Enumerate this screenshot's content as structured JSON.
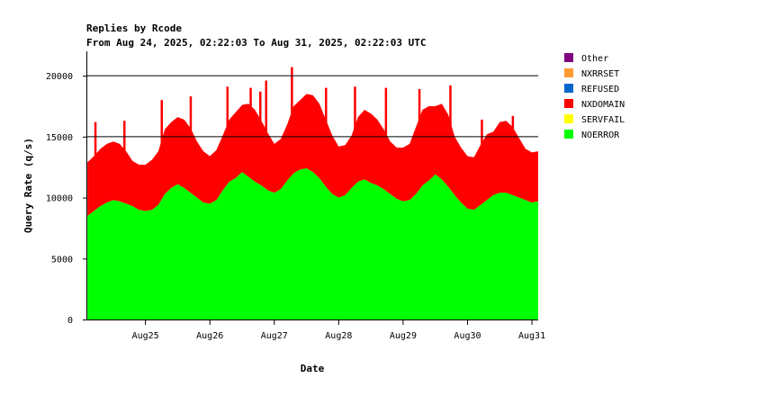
{
  "chart_data": {
    "type": "area",
    "stacked": true,
    "title": "Replies by Rcode",
    "subtitle": "From Aug 24, 2025, 02:22:03 To Aug 31, 2025, 02:22:03 UTC",
    "xlabel": "Date",
    "ylabel": "Query Rate (q/s)",
    "ylim": [
      0,
      22000
    ],
    "yticks": [
      0,
      5000,
      10000,
      15000,
      20000
    ],
    "ytick_labels": [
      "0",
      "5000",
      "10000",
      "15000",
      "20000"
    ],
    "xlim": [
      24.097,
      31.097
    ],
    "xticks": [
      25,
      26,
      27,
      28,
      29,
      30,
      31
    ],
    "xtick_labels": [
      "Aug25",
      "Aug26",
      "Aug27",
      "Aug28",
      "Aug29",
      "Aug30",
      "Aug31"
    ],
    "grid_lines_y": [
      15000,
      20000
    ],
    "legend_position": "right",
    "x": [
      24.1,
      24.2,
      24.3,
      24.4,
      24.5,
      24.6,
      24.7,
      24.8,
      24.9,
      25.0,
      25.1,
      25.2,
      25.3,
      25.4,
      25.5,
      25.6,
      25.7,
      25.8,
      25.9,
      26.0,
      26.1,
      26.2,
      26.3,
      26.4,
      26.5,
      26.6,
      26.7,
      26.8,
      26.9,
      27.0,
      27.1,
      27.2,
      27.3,
      27.4,
      27.5,
      27.6,
      27.7,
      27.8,
      27.9,
      28.0,
      28.1,
      28.2,
      28.3,
      28.4,
      28.5,
      28.6,
      28.7,
      28.8,
      28.9,
      29.0,
      29.1,
      29.2,
      29.3,
      29.4,
      29.5,
      29.6,
      29.7,
      29.8,
      29.9,
      30.0,
      30.1,
      30.2,
      30.3,
      30.4,
      30.5,
      30.6,
      30.7,
      30.8,
      30.9,
      31.0,
      31.1
    ],
    "series": [
      {
        "name": "NOERROR",
        "color": "#00ff00",
        "values": [
          8500,
          8900,
          9300,
          9600,
          9800,
          9700,
          9500,
          9300,
          9000,
          8900,
          9000,
          9400,
          10300,
          10800,
          11100,
          10800,
          10400,
          10000,
          9600,
          9500,
          9800,
          10600,
          11300,
          11600,
          12100,
          11700,
          11300,
          11000,
          10600,
          10400,
          10700,
          11400,
          12000,
          12300,
          12400,
          12100,
          11600,
          10900,
          10300,
          10000,
          10200,
          10800,
          11300,
          11500,
          11200,
          11000,
          10700,
          10300,
          9900,
          9700,
          9800,
          10300,
          11000,
          11400,
          11900,
          11500,
          10900,
          10200,
          9600,
          9100,
          9000,
          9400,
          9800,
          10200,
          10400,
          10400,
          10200,
          10000,
          9800,
          9600,
          9700
        ]
      },
      {
        "name": "SERVFAIL",
        "color": "#ffff00",
        "values": [
          0,
          0,
          0,
          0,
          0,
          0,
          0,
          0,
          0,
          0,
          0,
          0,
          0,
          0,
          0,
          0,
          0,
          0,
          0,
          0,
          0,
          0,
          0,
          0,
          0,
          0,
          0,
          0,
          0,
          0,
          0,
          0,
          0,
          0,
          0,
          0,
          0,
          0,
          0,
          0,
          0,
          0,
          0,
          0,
          0,
          0,
          0,
          0,
          0,
          0,
          0,
          0,
          0,
          0,
          0,
          0,
          0,
          0,
          0,
          0,
          0,
          0,
          0,
          0,
          0,
          0,
          0,
          0,
          0,
          0,
          0
        ]
      },
      {
        "name": "NXDOMAIN",
        "color": "#ff0000",
        "values": [
          4400,
          4500,
          4700,
          4800,
          4800,
          4700,
          4300,
          3700,
          3700,
          3800,
          4100,
          4400,
          5300,
          5400,
          5500,
          5600,
          5300,
          4600,
          4200,
          3900,
          4100,
          4500,
          5100,
          5400,
          5500,
          6000,
          5900,
          5300,
          4700,
          4000,
          4100,
          4600,
          5500,
          5700,
          6100,
          6300,
          6100,
          5500,
          4800,
          4200,
          4100,
          4300,
          5300,
          5700,
          5700,
          5400,
          4900,
          4300,
          4200,
          4400,
          4600,
          5500,
          6200,
          6100,
          5600,
          6200,
          5900,
          4800,
          4500,
          4300,
          4300,
          4900,
          5400,
          5200,
          5800,
          5900,
          5600,
          4900,
          4200,
          4100,
          4100
        ]
      },
      {
        "name": "REFUSED",
        "color": "#0066cc",
        "values": [
          0,
          0,
          0,
          0,
          0,
          0,
          0,
          0,
          0,
          0,
          0,
          0,
          0,
          0,
          0,
          0,
          0,
          0,
          0,
          0,
          0,
          0,
          0,
          0,
          0,
          0,
          0,
          0,
          0,
          0,
          0,
          0,
          0,
          0,
          0,
          0,
          0,
          0,
          0,
          0,
          0,
          0,
          0,
          0,
          0,
          0,
          0,
          0,
          0,
          0,
          0,
          0,
          0,
          0,
          0,
          0,
          0,
          0,
          0,
          0,
          0,
          0,
          0,
          0,
          0,
          0,
          0,
          0,
          0,
          0,
          0
        ]
      },
      {
        "name": "NXRRSET",
        "color": "#ff9933",
        "values": [
          0,
          0,
          0,
          0,
          0,
          0,
          0,
          0,
          0,
          0,
          0,
          0,
          0,
          0,
          0,
          0,
          0,
          0,
          0,
          0,
          0,
          0,
          0,
          0,
          0,
          0,
          0,
          0,
          0,
          0,
          0,
          0,
          0,
          0,
          0,
          0,
          0,
          0,
          0,
          0,
          0,
          0,
          0,
          0,
          0,
          0,
          0,
          0,
          0,
          0,
          0,
          0,
          0,
          0,
          0,
          0,
          0,
          0,
          0,
          0,
          0,
          0,
          0,
          0,
          0,
          0,
          0,
          0,
          0,
          0,
          0
        ]
      },
      {
        "name": "Other",
        "color": "#800080",
        "values": [
          0,
          0,
          0,
          0,
          0,
          0,
          0,
          0,
          0,
          0,
          0,
          0,
          0,
          0,
          0,
          0,
          0,
          0,
          0,
          0,
          0,
          0,
          0,
          0,
          0,
          0,
          0,
          0,
          0,
          0,
          0,
          0,
          0,
          0,
          0,
          0,
          0,
          0,
          0,
          0,
          0,
          0,
          0,
          0,
          0,
          0,
          0,
          0,
          0,
          0,
          0,
          0,
          0,
          0,
          0,
          0,
          0,
          0,
          0,
          0,
          0,
          0,
          0,
          0,
          0,
          0,
          0,
          0,
          0,
          0,
          0
        ]
      }
    ],
    "spikes": [
      {
        "x": 24.22,
        "top": 16200
      },
      {
        "x": 24.67,
        "top": 16300
      },
      {
        "x": 25.25,
        "top": 18000
      },
      {
        "x": 25.7,
        "top": 18300
      },
      {
        "x": 26.27,
        "top": 19100
      },
      {
        "x": 26.63,
        "top": 19000
      },
      {
        "x": 26.78,
        "top": 18700
      },
      {
        "x": 26.87,
        "top": 19600
      },
      {
        "x": 27.27,
        "top": 20700
      },
      {
        "x": 27.8,
        "top": 19000
      },
      {
        "x": 28.25,
        "top": 19100
      },
      {
        "x": 28.73,
        "top": 19000
      },
      {
        "x": 29.25,
        "top": 18900
      },
      {
        "x": 29.73,
        "top": 19200
      },
      {
        "x": 30.22,
        "top": 16400
      },
      {
        "x": 30.7,
        "top": 16700
      }
    ]
  }
}
